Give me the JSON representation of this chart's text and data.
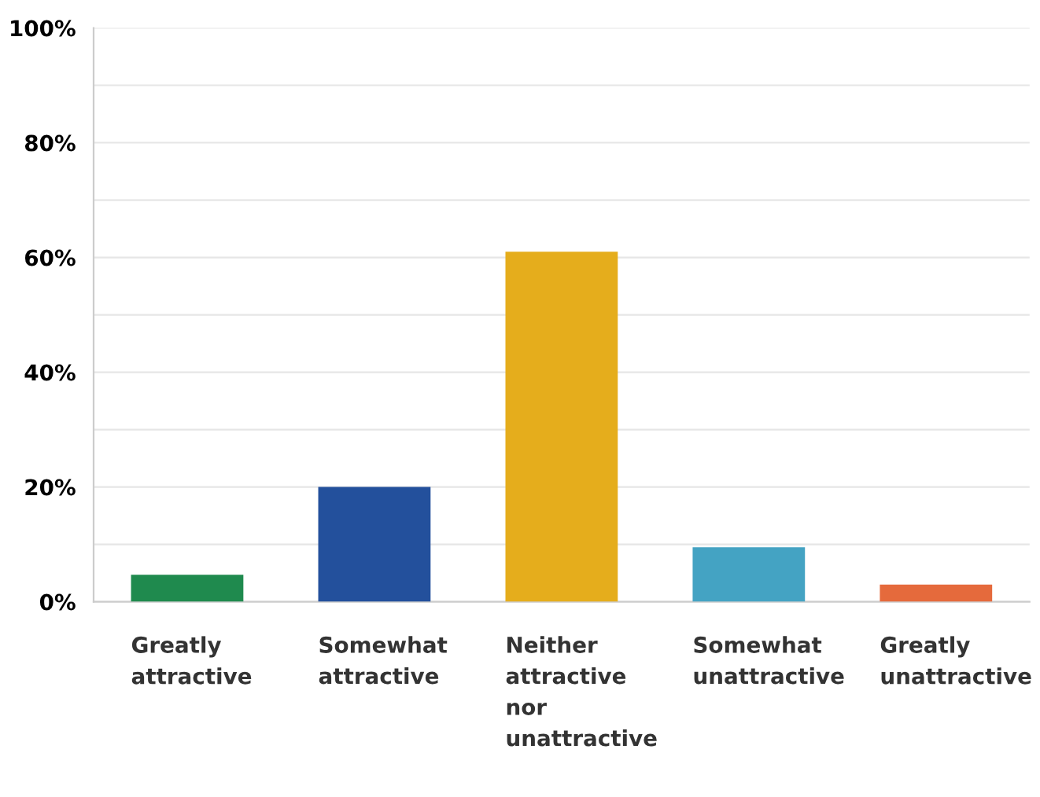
{
  "chart_data": {
    "type": "bar",
    "categories": [
      "Greatly\nattractive",
      "Somewhat\nattractive",
      "Neither\nattractive\nnor\nunattractive",
      "Somewhat\nunattractive",
      "Greatly\nunattractive"
    ],
    "values": [
      4.7,
      20,
      61,
      9.5,
      3
    ],
    "colors": [
      "#1f8a4e",
      "#23509c",
      "#e5ad1c",
      "#44a3c3",
      "#e56a3c"
    ],
    "ylim": [
      0,
      100
    ],
    "yticks": [
      {
        "value": 0,
        "label": "0%"
      },
      {
        "value": 10,
        "label": null
      },
      {
        "value": 20,
        "label": "20%"
      },
      {
        "value": 30,
        "label": null
      },
      {
        "value": 40,
        "label": "40%"
      },
      {
        "value": 50,
        "label": null
      },
      {
        "value": 60,
        "label": "60%"
      },
      {
        "value": 70,
        "label": null
      },
      {
        "value": 80,
        "label": "80%"
      },
      {
        "value": 90,
        "label": null
      },
      {
        "value": 100,
        "label": "100%"
      }
    ],
    "grid": "y"
  }
}
